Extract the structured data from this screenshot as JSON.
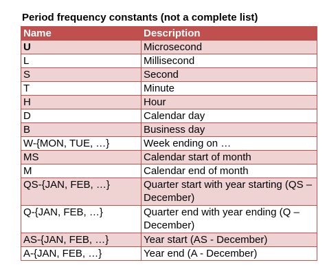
{
  "caption": "Period frequency constants (not a complete list)",
  "headers": {
    "name": "Name",
    "description": "Description"
  },
  "rows": [
    {
      "name": "U",
      "description": "Microsecond"
    },
    {
      "name": "L",
      "description": "Millisecond"
    },
    {
      "name": "S",
      "description": "Second"
    },
    {
      "name": "T",
      "description": "Minute"
    },
    {
      "name": "H",
      "description": "Hour"
    },
    {
      "name": "D",
      "description": "Calendar day"
    },
    {
      "name": "B",
      "description": "Business day"
    },
    {
      "name": "W-{MON, TUE, …}",
      "description": "Week ending on …"
    },
    {
      "name": "MS",
      "description": "Calendar start of month"
    },
    {
      "name": "M",
      "description": "Calendar end of month"
    },
    {
      "name": "QS-{JAN, FEB, …}",
      "description": "Quarter start with year starting (QS – December)"
    },
    {
      "name": "Q-{JAN, FEB, …}",
      "description": "Quarter end with year ending (Q – December)"
    },
    {
      "name": "AS-{JAN, FEB, …}",
      "description": "Year start (AS - December)"
    },
    {
      "name": "A-{JAN, FEB, …}",
      "description": "Year end (A - December)"
    }
  ],
  "colors": {
    "header_bg": "#c0504d",
    "band_bg": "#efd3d2",
    "border": "#c0504d"
  }
}
